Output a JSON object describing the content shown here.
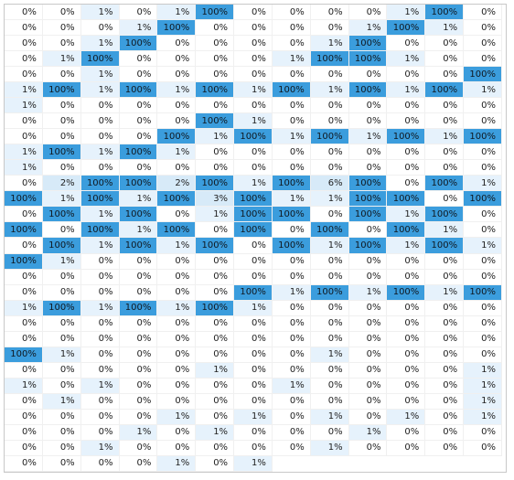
{
  "heatmap": {
    "columns": 13,
    "colors": {
      "high": "#3b9ddd",
      "low": "#e6f2fc",
      "zero": "#ffffff"
    },
    "rows": [
      [
        "0%",
        "0%",
        "1%",
        "0%",
        "1%",
        "100%",
        "0%",
        "0%",
        "0%",
        "0%",
        "1%",
        "100%",
        "0%"
      ],
      [
        "0%",
        "0%",
        "0%",
        "1%",
        "100%",
        "0%",
        "0%",
        "0%",
        "0%",
        "1%",
        "100%",
        "1%",
        "0%"
      ],
      [
        "0%",
        "0%",
        "1%",
        "100%",
        "0%",
        "0%",
        "0%",
        "0%",
        "1%",
        "100%",
        "0%",
        "0%",
        "0%"
      ],
      [
        "0%",
        "1%",
        "100%",
        "0%",
        "0%",
        "0%",
        "0%",
        "1%",
        "100%",
        "100%",
        "1%",
        "0%",
        "0%"
      ],
      [
        "0%",
        "0%",
        "1%",
        "0%",
        "0%",
        "0%",
        "0%",
        "0%",
        "0%",
        "0%",
        "0%",
        "0%",
        "100%"
      ],
      [
        "1%",
        "100%",
        "1%",
        "100%",
        "1%",
        "100%",
        "1%",
        "100%",
        "1%",
        "100%",
        "1%",
        "100%",
        "1%"
      ],
      [
        "1%",
        "0%",
        "0%",
        "0%",
        "0%",
        "0%",
        "0%",
        "0%",
        "0%",
        "0%",
        "0%",
        "0%",
        "0%"
      ],
      [
        "0%",
        "0%",
        "0%",
        "0%",
        "0%",
        "100%",
        "1%",
        "0%",
        "0%",
        "0%",
        "0%",
        "0%",
        "0%"
      ],
      [
        "0%",
        "0%",
        "0%",
        "0%",
        "100%",
        "1%",
        "100%",
        "1%",
        "100%",
        "1%",
        "100%",
        "1%",
        "100%"
      ],
      [
        "1%",
        "100%",
        "1%",
        "100%",
        "1%",
        "0%",
        "0%",
        "0%",
        "0%",
        "0%",
        "0%",
        "0%",
        "0%"
      ],
      [
        "1%",
        "0%",
        "0%",
        "0%",
        "0%",
        "0%",
        "0%",
        "0%",
        "0%",
        "0%",
        "0%",
        "0%",
        "0%"
      ],
      [
        "0%",
        "2%",
        "100%",
        "100%",
        "2%",
        "100%",
        "1%",
        "100%",
        "6%",
        "100%",
        "0%",
        "100%",
        "1%"
      ],
      [
        "100%",
        "1%",
        "100%",
        "1%",
        "100%",
        "3%",
        "100%",
        "1%",
        "1%",
        "100%",
        "100%",
        "0%",
        "100%"
      ],
      [
        "0%",
        "100%",
        "1%",
        "100%",
        "0%",
        "1%",
        "100%",
        "100%",
        "0%",
        "100%",
        "1%",
        "100%",
        "0%"
      ],
      [
        "100%",
        "0%",
        "100%",
        "1%",
        "100%",
        "0%",
        "100%",
        "0%",
        "100%",
        "0%",
        "100%",
        "1%",
        "0%"
      ],
      [
        "0%",
        "100%",
        "1%",
        "100%",
        "1%",
        "100%",
        "0%",
        "100%",
        "1%",
        "100%",
        "1%",
        "100%",
        "1%"
      ],
      [
        "100%",
        "1%",
        "0%",
        "0%",
        "0%",
        "0%",
        "0%",
        "0%",
        "0%",
        "0%",
        "0%",
        "0%",
        "0%"
      ],
      [
        "0%",
        "0%",
        "0%",
        "0%",
        "0%",
        "0%",
        "0%",
        "0%",
        "0%",
        "0%",
        "0%",
        "0%",
        "0%"
      ],
      [
        "0%",
        "0%",
        "0%",
        "0%",
        "0%",
        "0%",
        "100%",
        "1%",
        "100%",
        "1%",
        "100%",
        "1%",
        "100%"
      ],
      [
        "1%",
        "100%",
        "1%",
        "100%",
        "1%",
        "100%",
        "1%",
        "0%",
        "0%",
        "0%",
        "0%",
        "0%",
        "0%"
      ],
      [
        "0%",
        "0%",
        "0%",
        "0%",
        "0%",
        "0%",
        "0%",
        "0%",
        "0%",
        "0%",
        "0%",
        "0%",
        "0%"
      ],
      [
        "0%",
        "0%",
        "0%",
        "0%",
        "0%",
        "0%",
        "0%",
        "0%",
        "0%",
        "0%",
        "0%",
        "0%",
        "0%"
      ],
      [
        "100%",
        "1%",
        "0%",
        "0%",
        "0%",
        "0%",
        "0%",
        "0%",
        "1%",
        "0%",
        "0%",
        "0%",
        "0%"
      ],
      [
        "0%",
        "0%",
        "0%",
        "0%",
        "0%",
        "1%",
        "0%",
        "0%",
        "0%",
        "0%",
        "0%",
        "0%",
        "1%"
      ],
      [
        "1%",
        "0%",
        "1%",
        "0%",
        "0%",
        "0%",
        "0%",
        "1%",
        "0%",
        "0%",
        "0%",
        "0%",
        "1%"
      ],
      [
        "0%",
        "1%",
        "0%",
        "0%",
        "0%",
        "0%",
        "0%",
        "0%",
        "0%",
        "0%",
        "0%",
        "0%",
        "1%"
      ],
      [
        "0%",
        "0%",
        "0%",
        "0%",
        "1%",
        "0%",
        "1%",
        "0%",
        "1%",
        "0%",
        "1%",
        "0%",
        "1%"
      ],
      [
        "0%",
        "0%",
        "0%",
        "1%",
        "0%",
        "1%",
        "0%",
        "0%",
        "0%",
        "1%",
        "0%",
        "0%",
        "0%"
      ],
      [
        "0%",
        "0%",
        "1%",
        "0%",
        "0%",
        "0%",
        "0%",
        "0%",
        "1%",
        "0%",
        "0%",
        "0%",
        "0%"
      ],
      [
        "0%",
        "0%",
        "0%",
        "0%",
        "1%",
        "0%",
        "1%"
      ]
    ]
  }
}
